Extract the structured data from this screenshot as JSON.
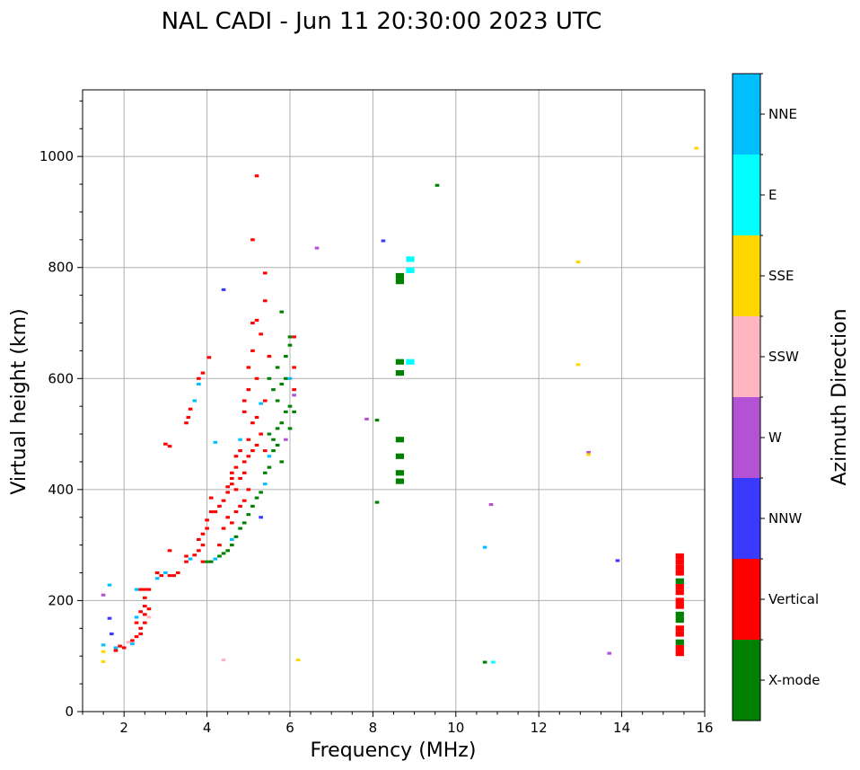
{
  "chart_data": {
    "type": "scatter",
    "title": "NAL CADI - Jun 11 20:30:00 2023 UTC",
    "xlabel": "Frequency (MHz)",
    "ylabel": "Virtual height (km)",
    "xlim": [
      1,
      16
    ],
    "ylim": [
      0,
      1120
    ],
    "xticks": [
      2,
      4,
      6,
      8,
      10,
      12,
      14,
      16
    ],
    "yticks": [
      0,
      200,
      400,
      600,
      800,
      1000
    ],
    "grid": true,
    "colorbar": {
      "label": "Azimuth Direction",
      "categories": [
        {
          "name": "X-mode",
          "color": "#008000"
        },
        {
          "name": "Vertical",
          "color": "#ff0000"
        },
        {
          "name": "NNW",
          "color": "#3a3aff"
        },
        {
          "name": "W",
          "color": "#b452d6"
        },
        {
          "name": "SSW",
          "color": "#ffb6c1"
        },
        {
          "name": "SSE",
          "color": "#ffd700"
        },
        {
          "name": "E",
          "color": "#00ffff"
        },
        {
          "name": "NNE",
          "color": "#00bfff"
        }
      ]
    },
    "points": [
      {
        "x": 1.5,
        "y": 90,
        "c": "SSE"
      },
      {
        "x": 1.5,
        "y": 108,
        "c": "SSE"
      },
      {
        "x": 1.5,
        "y": 120,
        "c": "NNE"
      },
      {
        "x": 1.5,
        "y": 210,
        "c": "W"
      },
      {
        "x": 1.65,
        "y": 228,
        "c": "NNE"
      },
      {
        "x": 1.65,
        "y": 168,
        "c": "NNW"
      },
      {
        "x": 1.7,
        "y": 140,
        "c": "NNW"
      },
      {
        "x": 1.8,
        "y": 110,
        "c": "Vertical"
      },
      {
        "x": 1.8,
        "y": 115,
        "c": "NNE"
      },
      {
        "x": 1.9,
        "y": 118,
        "c": "Vertical"
      },
      {
        "x": 2.0,
        "y": 115,
        "c": "Vertical"
      },
      {
        "x": 2.1,
        "y": 125,
        "c": "SSW"
      },
      {
        "x": 2.2,
        "y": 128,
        "c": "Vertical"
      },
      {
        "x": 2.2,
        "y": 122,
        "c": "NNE"
      },
      {
        "x": 2.3,
        "y": 135,
        "c": "Vertical"
      },
      {
        "x": 2.3,
        "y": 160,
        "c": "Vertical"
      },
      {
        "x": 2.3,
        "y": 170,
        "c": "NNE"
      },
      {
        "x": 2.3,
        "y": 220,
        "c": "NNE"
      },
      {
        "x": 2.4,
        "y": 140,
        "c": "Vertical"
      },
      {
        "x": 2.4,
        "y": 150,
        "c": "Vertical"
      },
      {
        "x": 2.4,
        "y": 180,
        "c": "Vertical"
      },
      {
        "x": 2.4,
        "y": 220,
        "c": "Vertical"
      },
      {
        "x": 2.5,
        "y": 160,
        "c": "Vertical"
      },
      {
        "x": 2.5,
        "y": 175,
        "c": "Vertical"
      },
      {
        "x": 2.5,
        "y": 190,
        "c": "Vertical"
      },
      {
        "x": 2.5,
        "y": 205,
        "c": "Vertical"
      },
      {
        "x": 2.5,
        "y": 220,
        "c": "Vertical"
      },
      {
        "x": 2.6,
        "y": 170,
        "c": "SSW"
      },
      {
        "x": 2.6,
        "y": 185,
        "c": "Vertical"
      },
      {
        "x": 2.6,
        "y": 220,
        "c": "Vertical"
      },
      {
        "x": 2.8,
        "y": 250,
        "c": "Vertical"
      },
      {
        "x": 2.8,
        "y": 240,
        "c": "NNE"
      },
      {
        "x": 2.9,
        "y": 245,
        "c": "Vertical"
      },
      {
        "x": 3.0,
        "y": 250,
        "c": "NNE"
      },
      {
        "x": 3.0,
        "y": 482,
        "c": "Vertical"
      },
      {
        "x": 3.1,
        "y": 478,
        "c": "Vertical"
      },
      {
        "x": 3.1,
        "y": 245,
        "c": "Vertical"
      },
      {
        "x": 3.1,
        "y": 290,
        "c": "Vertical"
      },
      {
        "x": 3.2,
        "y": 245,
        "c": "Vertical"
      },
      {
        "x": 3.3,
        "y": 250,
        "c": "Vertical"
      },
      {
        "x": 3.5,
        "y": 270,
        "c": "Vertical"
      },
      {
        "x": 3.5,
        "y": 280,
        "c": "Vertical"
      },
      {
        "x": 3.5,
        "y": 520,
        "c": "Vertical"
      },
      {
        "x": 3.55,
        "y": 530,
        "c": "Vertical"
      },
      {
        "x": 3.6,
        "y": 275,
        "c": "NNE"
      },
      {
        "x": 3.6,
        "y": 545,
        "c": "Vertical"
      },
      {
        "x": 3.7,
        "y": 560,
        "c": "NNE"
      },
      {
        "x": 3.7,
        "y": 282,
        "c": "Vertical"
      },
      {
        "x": 3.8,
        "y": 290,
        "c": "Vertical"
      },
      {
        "x": 3.8,
        "y": 310,
        "c": "Vertical"
      },
      {
        "x": 3.8,
        "y": 590,
        "c": "NNE"
      },
      {
        "x": 3.8,
        "y": 600,
        "c": "Vertical"
      },
      {
        "x": 3.9,
        "y": 270,
        "c": "Vertical"
      },
      {
        "x": 3.9,
        "y": 300,
        "c": "Vertical"
      },
      {
        "x": 3.9,
        "y": 320,
        "c": "Vertical"
      },
      {
        "x": 3.9,
        "y": 610,
        "c": "Vertical"
      },
      {
        "x": 4.0,
        "y": 270,
        "c": "X-mode"
      },
      {
        "x": 4.0,
        "y": 330,
        "c": "Vertical"
      },
      {
        "x": 4.0,
        "y": 345,
        "c": "Vertical"
      },
      {
        "x": 4.05,
        "y": 638,
        "c": "Vertical"
      },
      {
        "x": 4.1,
        "y": 270,
        "c": "X-mode"
      },
      {
        "x": 4.1,
        "y": 360,
        "c": "Vertical"
      },
      {
        "x": 4.1,
        "y": 385,
        "c": "Vertical"
      },
      {
        "x": 4.2,
        "y": 275,
        "c": "NNE"
      },
      {
        "x": 4.2,
        "y": 360,
        "c": "Vertical"
      },
      {
        "x": 4.2,
        "y": 485,
        "c": "NNE"
      },
      {
        "x": 4.3,
        "y": 280,
        "c": "X-mode"
      },
      {
        "x": 4.3,
        "y": 300,
        "c": "Vertical"
      },
      {
        "x": 4.3,
        "y": 370,
        "c": "Vertical"
      },
      {
        "x": 4.4,
        "y": 285,
        "c": "X-mode"
      },
      {
        "x": 4.4,
        "y": 330,
        "c": "Vertical"
      },
      {
        "x": 4.4,
        "y": 380,
        "c": "Vertical"
      },
      {
        "x": 4.4,
        "y": 93,
        "c": "SSW"
      },
      {
        "x": 4.4,
        "y": 760,
        "c": "NNW"
      },
      {
        "x": 4.5,
        "y": 290,
        "c": "X-mode"
      },
      {
        "x": 4.5,
        "y": 350,
        "c": "Vertical"
      },
      {
        "x": 4.5,
        "y": 395,
        "c": "Vertical"
      },
      {
        "x": 4.5,
        "y": 405,
        "c": "Vertical"
      },
      {
        "x": 4.6,
        "y": 300,
        "c": "X-mode"
      },
      {
        "x": 4.6,
        "y": 310,
        "c": "NNE"
      },
      {
        "x": 4.6,
        "y": 340,
        "c": "Vertical"
      },
      {
        "x": 4.6,
        "y": 410,
        "c": "Vertical"
      },
      {
        "x": 4.6,
        "y": 420,
        "c": "Vertical"
      },
      {
        "x": 4.6,
        "y": 430,
        "c": "Vertical"
      },
      {
        "x": 4.7,
        "y": 315,
        "c": "X-mode"
      },
      {
        "x": 4.7,
        "y": 360,
        "c": "Vertical"
      },
      {
        "x": 4.7,
        "y": 400,
        "c": "Vertical"
      },
      {
        "x": 4.7,
        "y": 440,
        "c": "Vertical"
      },
      {
        "x": 4.7,
        "y": 460,
        "c": "Vertical"
      },
      {
        "x": 4.8,
        "y": 330,
        "c": "X-mode"
      },
      {
        "x": 4.8,
        "y": 370,
        "c": "Vertical"
      },
      {
        "x": 4.8,
        "y": 420,
        "c": "Vertical"
      },
      {
        "x": 4.8,
        "y": 470,
        "c": "Vertical"
      },
      {
        "x": 4.8,
        "y": 490,
        "c": "NNE"
      },
      {
        "x": 4.9,
        "y": 340,
        "c": "X-mode"
      },
      {
        "x": 4.9,
        "y": 380,
        "c": "Vertical"
      },
      {
        "x": 4.9,
        "y": 430,
        "c": "Vertical"
      },
      {
        "x": 4.9,
        "y": 450,
        "c": "Vertical"
      },
      {
        "x": 4.9,
        "y": 540,
        "c": "Vertical"
      },
      {
        "x": 4.9,
        "y": 560,
        "c": "Vertical"
      },
      {
        "x": 5.0,
        "y": 355,
        "c": "X-mode"
      },
      {
        "x": 5.0,
        "y": 400,
        "c": "Vertical"
      },
      {
        "x": 5.0,
        "y": 460,
        "c": "Vertical"
      },
      {
        "x": 5.0,
        "y": 490,
        "c": "Vertical"
      },
      {
        "x": 5.0,
        "y": 580,
        "c": "Vertical"
      },
      {
        "x": 5.0,
        "y": 620,
        "c": "Vertical"
      },
      {
        "x": 5.1,
        "y": 370,
        "c": "X-mode"
      },
      {
        "x": 5.1,
        "y": 470,
        "c": "Vertical"
      },
      {
        "x": 5.1,
        "y": 520,
        "c": "Vertical"
      },
      {
        "x": 5.1,
        "y": 650,
        "c": "Vertical"
      },
      {
        "x": 5.1,
        "y": 700,
        "c": "Vertical"
      },
      {
        "x": 5.1,
        "y": 850,
        "c": "Vertical"
      },
      {
        "x": 5.2,
        "y": 385,
        "c": "X-mode"
      },
      {
        "x": 5.2,
        "y": 480,
        "c": "Vertical"
      },
      {
        "x": 5.2,
        "y": 530,
        "c": "Vertical"
      },
      {
        "x": 5.2,
        "y": 600,
        "c": "Vertical"
      },
      {
        "x": 5.2,
        "y": 705,
        "c": "Vertical"
      },
      {
        "x": 5.2,
        "y": 965,
        "c": "Vertical"
      },
      {
        "x": 5.3,
        "y": 395,
        "c": "X-mode"
      },
      {
        "x": 5.3,
        "y": 350,
        "c": "NNW"
      },
      {
        "x": 5.3,
        "y": 500,
        "c": "Vertical"
      },
      {
        "x": 5.3,
        "y": 555,
        "c": "NNE"
      },
      {
        "x": 5.3,
        "y": 680,
        "c": "Vertical"
      },
      {
        "x": 5.4,
        "y": 410,
        "c": "NNE"
      },
      {
        "x": 5.4,
        "y": 430,
        "c": "X-mode"
      },
      {
        "x": 5.4,
        "y": 470,
        "c": "Vertical"
      },
      {
        "x": 5.4,
        "y": 560,
        "c": "Vertical"
      },
      {
        "x": 5.4,
        "y": 740,
        "c": "Vertical"
      },
      {
        "x": 5.4,
        "y": 790,
        "c": "Vertical"
      },
      {
        "x": 5.5,
        "y": 440,
        "c": "X-mode"
      },
      {
        "x": 5.5,
        "y": 460,
        "c": "NNE"
      },
      {
        "x": 5.5,
        "y": 500,
        "c": "X-mode"
      },
      {
        "x": 5.5,
        "y": 600,
        "c": "X-mode"
      },
      {
        "x": 5.5,
        "y": 640,
        "c": "Vertical"
      },
      {
        "x": 5.6,
        "y": 470,
        "c": "X-mode"
      },
      {
        "x": 5.6,
        "y": 490,
        "c": "X-mode"
      },
      {
        "x": 5.6,
        "y": 580,
        "c": "X-mode"
      },
      {
        "x": 5.7,
        "y": 480,
        "c": "X-mode"
      },
      {
        "x": 5.7,
        "y": 510,
        "c": "X-mode"
      },
      {
        "x": 5.7,
        "y": 560,
        "c": "X-mode"
      },
      {
        "x": 5.7,
        "y": 620,
        "c": "X-mode"
      },
      {
        "x": 5.8,
        "y": 450,
        "c": "X-mode"
      },
      {
        "x": 5.8,
        "y": 520,
        "c": "X-mode"
      },
      {
        "x": 5.8,
        "y": 590,
        "c": "X-mode"
      },
      {
        "x": 5.8,
        "y": 720,
        "c": "X-mode"
      },
      {
        "x": 5.9,
        "y": 490,
        "c": "W"
      },
      {
        "x": 5.9,
        "y": 540,
        "c": "X-mode"
      },
      {
        "x": 5.9,
        "y": 600,
        "c": "X-mode"
      },
      {
        "x": 5.9,
        "y": 640,
        "c": "X-mode"
      },
      {
        "x": 6.0,
        "y": 510,
        "c": "X-mode"
      },
      {
        "x": 6.0,
        "y": 550,
        "c": "X-mode"
      },
      {
        "x": 6.0,
        "y": 600,
        "c": "NNE"
      },
      {
        "x": 6.0,
        "y": 660,
        "c": "X-mode"
      },
      {
        "x": 6.0,
        "y": 675,
        "c": "X-mode"
      },
      {
        "x": 6.1,
        "y": 540,
        "c": "X-mode"
      },
      {
        "x": 6.1,
        "y": 570,
        "c": "W"
      },
      {
        "x": 6.1,
        "y": 580,
        "c": "Vertical"
      },
      {
        "x": 6.1,
        "y": 620,
        "c": "Vertical"
      },
      {
        "x": 6.1,
        "y": 675,
        "c": "Vertical"
      },
      {
        "x": 6.2,
        "y": 93,
        "c": "SSE"
      },
      {
        "x": 6.65,
        "y": 835,
        "c": "W"
      },
      {
        "x": 7.85,
        "y": 527,
        "c": "W"
      },
      {
        "x": 8.1,
        "y": 377,
        "c": "X-mode"
      },
      {
        "x": 8.1,
        "y": 525,
        "c": "X-mode"
      },
      {
        "x": 8.25,
        "y": 848,
        "c": "NNW"
      },
      {
        "x": 8.65,
        "y": 415,
        "c": "X-mode"
      },
      {
        "x": 8.65,
        "y": 430,
        "c": "X-mode"
      },
      {
        "x": 8.65,
        "y": 460,
        "c": "X-mode"
      },
      {
        "x": 8.65,
        "y": 490,
        "c": "X-mode"
      },
      {
        "x": 8.65,
        "y": 610,
        "c": "X-mode"
      },
      {
        "x": 8.65,
        "y": 630,
        "c": "X-mode"
      },
      {
        "x": 8.65,
        "y": 775,
        "c": "X-mode"
      },
      {
        "x": 8.65,
        "y": 785,
        "c": "X-mode"
      },
      {
        "x": 8.9,
        "y": 630,
        "c": "E"
      },
      {
        "x": 8.9,
        "y": 795,
        "c": "E"
      },
      {
        "x": 8.9,
        "y": 815,
        "c": "E"
      },
      {
        "x": 9.55,
        "y": 948,
        "c": "X-mode"
      },
      {
        "x": 10.7,
        "y": 296,
        "c": "NNE"
      },
      {
        "x": 10.7,
        "y": 89,
        "c": "X-mode"
      },
      {
        "x": 10.9,
        "y": 89,
        "c": "E"
      },
      {
        "x": 10.85,
        "y": 373,
        "c": "W"
      },
      {
        "x": 12.95,
        "y": 810,
        "c": "SSE"
      },
      {
        "x": 12.95,
        "y": 625,
        "c": "SSE"
      },
      {
        "x": 13.2,
        "y": 467,
        "c": "W"
      },
      {
        "x": 13.2,
        "y": 463,
        "c": "SSE"
      },
      {
        "x": 13.7,
        "y": 105,
        "c": "W"
      },
      {
        "x": 13.9,
        "y": 272,
        "c": "NNW"
      },
      {
        "x": 15.4,
        "y": 105,
        "c": "Vertical"
      },
      {
        "x": 15.4,
        "y": 115,
        "c": "Vertical"
      },
      {
        "x": 15.4,
        "y": 125,
        "c": "X-mode"
      },
      {
        "x": 15.4,
        "y": 140,
        "c": "Vertical"
      },
      {
        "x": 15.4,
        "y": 150,
        "c": "Vertical"
      },
      {
        "x": 15.4,
        "y": 165,
        "c": "X-mode"
      },
      {
        "x": 15.4,
        "y": 175,
        "c": "X-mode"
      },
      {
        "x": 15.4,
        "y": 190,
        "c": "Vertical"
      },
      {
        "x": 15.4,
        "y": 200,
        "c": "Vertical"
      },
      {
        "x": 15.4,
        "y": 215,
        "c": "Vertical"
      },
      {
        "x": 15.4,
        "y": 225,
        "c": "Vertical"
      },
      {
        "x": 15.4,
        "y": 235,
        "c": "X-mode"
      },
      {
        "x": 15.4,
        "y": 250,
        "c": "Vertical"
      },
      {
        "x": 15.4,
        "y": 260,
        "c": "Vertical"
      },
      {
        "x": 15.4,
        "y": 270,
        "c": "Vertical"
      },
      {
        "x": 15.4,
        "y": 280,
        "c": "Vertical"
      },
      {
        "x": 15.8,
        "y": 1015,
        "c": "SSE"
      }
    ]
  }
}
